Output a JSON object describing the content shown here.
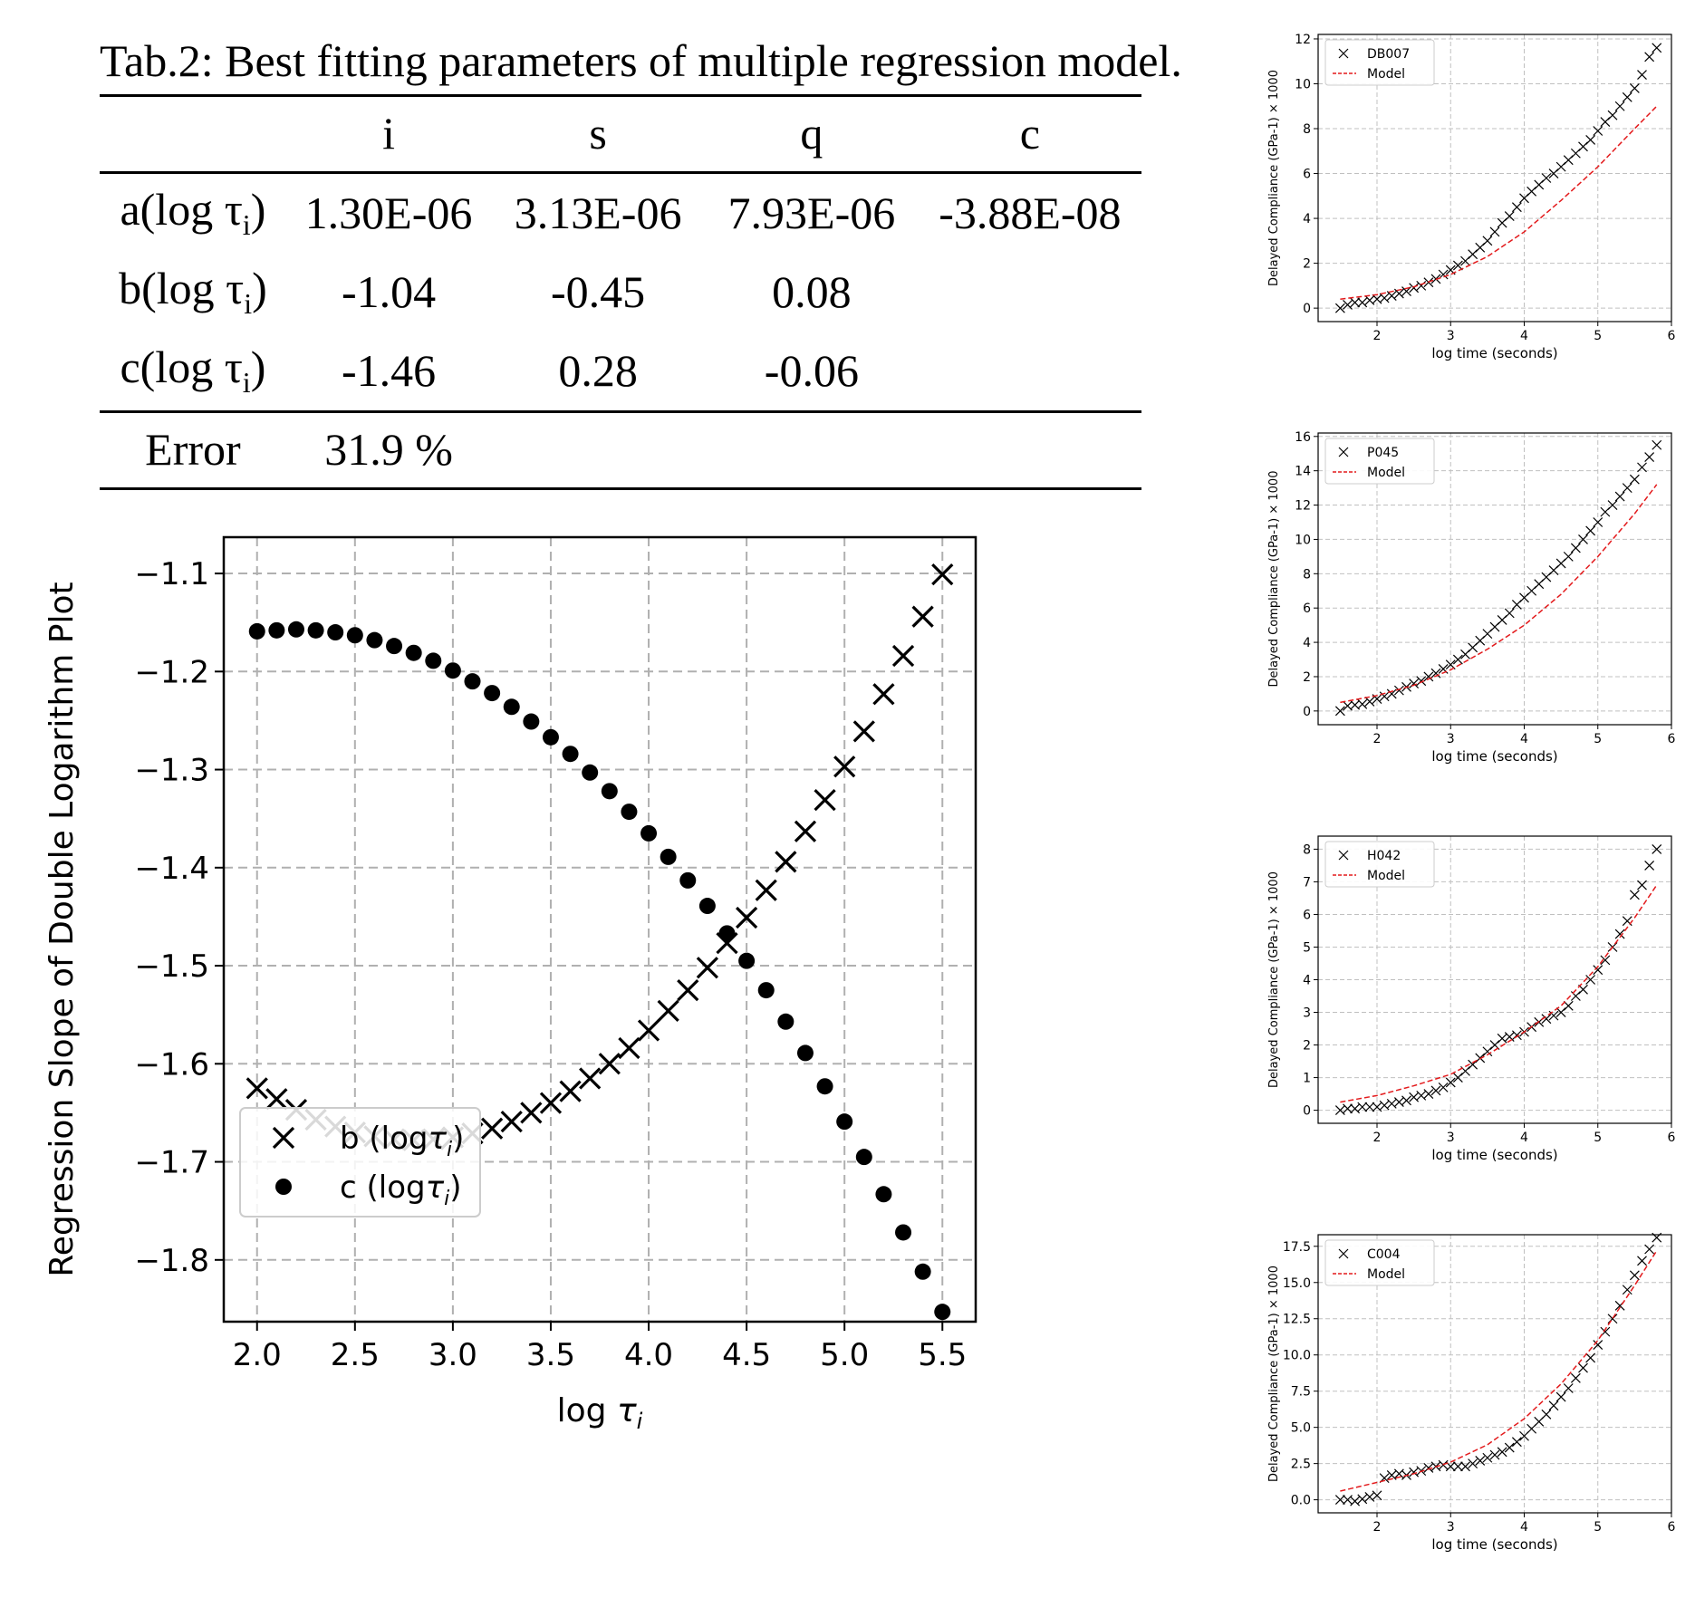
{
  "table": {
    "caption": "Tab.2: Best fitting parameters of multiple regression model.",
    "columns": [
      "",
      "i",
      "s",
      "q",
      "c"
    ],
    "rows": [
      {
        "label_main": "a(log τ",
        "label_sub": "i",
        "label_end": ")",
        "cells": [
          "1.30E-06",
          "3.13E-06",
          "7.93E-06",
          "-3.88E-08"
        ]
      },
      {
        "label_main": "b(log τ",
        "label_sub": "i",
        "label_end": ")",
        "cells": [
          "-1.04",
          "-0.45",
          "0.08",
          ""
        ]
      },
      {
        "label_main": "c(log τ",
        "label_sub": "i",
        "label_end": ")",
        "cells": [
          "-1.46",
          "0.28",
          "-0.06",
          ""
        ]
      }
    ],
    "error": {
      "label": "Error",
      "value": "31.9 %"
    }
  },
  "chart_data": [
    {
      "type": "scatter",
      "title": "",
      "xlabel": "log τi",
      "ylabel": "Regression Slope of Double Logarithm Plot",
      "xlim": [
        1.83,
        5.67
      ],
      "ylim": [
        -1.863,
        -1.063
      ],
      "xticks": [
        "2.0",
        "2.5",
        "3.0",
        "3.5",
        "4.0",
        "4.5",
        "5.0",
        "5.5"
      ],
      "yticks": [
        "−1.1",
        "−1.2",
        "−1.3",
        "−1.4",
        "−1.5",
        "−1.6",
        "−1.7",
        "−1.8"
      ],
      "grid": true,
      "legend_position": "lower-left",
      "x": [
        2.0,
        2.1,
        2.2,
        2.3,
        2.4,
        2.5,
        2.6,
        2.7,
        2.8,
        2.9,
        3.0,
        3.1,
        3.2,
        3.3,
        3.4,
        3.5,
        3.6,
        3.7,
        3.8,
        3.9,
        4.0,
        4.1,
        4.2,
        4.3,
        4.4,
        4.5,
        4.6,
        4.7,
        4.8,
        4.9,
        5.0,
        5.1,
        5.2,
        5.3,
        5.4,
        5.5
      ],
      "series": [
        {
          "name": "b (logτi)",
          "legend_main": "b (log",
          "legend_sym": "τ",
          "legend_sub": "i",
          "legend_end": ")",
          "marker": "x",
          "color": "#000000",
          "values": [
            -1.625,
            -1.636,
            -1.647,
            -1.657,
            -1.664,
            -1.67,
            -1.674,
            -1.677,
            -1.678,
            -1.677,
            -1.675,
            -1.671,
            -1.666,
            -1.659,
            -1.65,
            -1.64,
            -1.628,
            -1.615,
            -1.6,
            -1.584,
            -1.566,
            -1.546,
            -1.525,
            -1.502,
            -1.477,
            -1.451,
            -1.423,
            -1.394,
            -1.363,
            -1.331,
            -1.297,
            -1.261,
            -1.223,
            -1.184,
            -1.144,
            -1.101
          ]
        },
        {
          "name": "c (logτi)",
          "legend_main": "c (log",
          "legend_sym": "τ",
          "legend_sub": "i",
          "legend_end": ")",
          "marker": "o",
          "color": "#000000",
          "values": [
            -1.159,
            -1.158,
            -1.157,
            -1.158,
            -1.16,
            -1.163,
            -1.168,
            -1.174,
            -1.181,
            -1.189,
            -1.199,
            -1.21,
            -1.222,
            -1.236,
            -1.251,
            -1.267,
            -1.284,
            -1.303,
            -1.322,
            -1.343,
            -1.365,
            -1.389,
            -1.413,
            -1.439,
            -1.467,
            -1.495,
            -1.525,
            -1.557,
            -1.589,
            -1.623,
            -1.659,
            -1.695,
            -1.733,
            -1.772,
            -1.812,
            -1.853
          ]
        }
      ]
    },
    {
      "type": "line",
      "xlabel": "log time (seconds)",
      "ylabel": "Delayed Compliance (GPa-1) × 1000",
      "xlim": [
        1.2,
        6.0
      ],
      "ylim": [
        -0.6,
        12.2
      ],
      "xticks": [
        2,
        3,
        4,
        5,
        6
      ],
      "yticks": [
        0,
        2,
        4,
        6,
        8,
        10,
        12
      ],
      "ytick_decimals": 0,
      "grid": true,
      "legend_position": "top-left",
      "series": [
        {
          "name": "DB007",
          "marker": "x",
          "color": "#000000",
          "x": [
            1.5,
            1.6,
            1.7,
            1.8,
            1.9,
            2.0,
            2.1,
            2.2,
            2.3,
            2.4,
            2.5,
            2.6,
            2.7,
            2.8,
            2.9,
            3.0,
            3.1,
            3.2,
            3.3,
            3.4,
            3.5,
            3.6,
            3.7,
            3.8,
            3.9,
            4.0,
            4.1,
            4.2,
            4.3,
            4.4,
            4.5,
            4.6,
            4.7,
            4.8,
            4.9,
            5.0,
            5.1,
            5.2,
            5.3,
            5.4,
            5.5,
            5.6,
            5.7,
            5.8
          ],
          "values": [
            0.0,
            0.15,
            0.25,
            0.25,
            0.35,
            0.4,
            0.45,
            0.55,
            0.65,
            0.75,
            0.9,
            1.0,
            1.15,
            1.3,
            1.5,
            1.7,
            1.9,
            2.1,
            2.4,
            2.7,
            3.0,
            3.4,
            3.8,
            4.1,
            4.5,
            4.9,
            5.2,
            5.5,
            5.8,
            6.0,
            6.3,
            6.6,
            6.9,
            7.2,
            7.5,
            7.9,
            8.3,
            8.6,
            9.0,
            9.4,
            9.8,
            10.4,
            11.2,
            11.6
          ]
        },
        {
          "name": "Model",
          "marker": "line",
          "color": "#e31a1c",
          "x": [
            1.5,
            2.0,
            2.5,
            3.0,
            3.5,
            4.0,
            4.5,
            5.0,
            5.5,
            5.8
          ],
          "values": [
            0.4,
            0.6,
            0.95,
            1.5,
            2.3,
            3.4,
            4.8,
            6.3,
            8.0,
            9.0
          ]
        }
      ]
    },
    {
      "type": "line",
      "xlabel": "log time (seconds)",
      "ylabel": "Delayed Compliance (GPa-1) × 1000",
      "xlim": [
        1.2,
        6.0
      ],
      "ylim": [
        -0.8,
        16.2
      ],
      "xticks": [
        2,
        3,
        4,
        5,
        6
      ],
      "yticks": [
        0,
        2,
        4,
        6,
        8,
        10,
        12,
        14,
        16
      ],
      "ytick_decimals": 0,
      "grid": true,
      "legend_position": "top-left",
      "series": [
        {
          "name": "P045",
          "marker": "x",
          "color": "#000000",
          "x": [
            1.5,
            1.6,
            1.7,
            1.8,
            1.9,
            2.0,
            2.1,
            2.2,
            2.3,
            2.4,
            2.5,
            2.6,
            2.7,
            2.8,
            2.9,
            3.0,
            3.1,
            3.2,
            3.3,
            3.4,
            3.5,
            3.6,
            3.7,
            3.8,
            3.9,
            4.0,
            4.1,
            4.2,
            4.3,
            4.4,
            4.5,
            4.6,
            4.7,
            4.8,
            4.9,
            5.0,
            5.1,
            5.2,
            5.3,
            5.4,
            5.5,
            5.6,
            5.7,
            5.8
          ],
          "values": [
            0.0,
            0.3,
            0.35,
            0.4,
            0.55,
            0.7,
            0.85,
            1.0,
            1.2,
            1.4,
            1.6,
            1.75,
            2.0,
            2.2,
            2.45,
            2.7,
            3.0,
            3.3,
            3.7,
            4.1,
            4.5,
            4.9,
            5.3,
            5.7,
            6.2,
            6.6,
            7.0,
            7.4,
            7.8,
            8.2,
            8.6,
            9.0,
            9.5,
            10.0,
            10.5,
            11.0,
            11.6,
            12.0,
            12.5,
            13.0,
            13.5,
            14.2,
            14.8,
            15.5
          ]
        },
        {
          "name": "Model",
          "marker": "line",
          "color": "#e31a1c",
          "x": [
            1.5,
            2.0,
            2.5,
            3.0,
            3.5,
            4.0,
            4.5,
            5.0,
            5.5,
            5.8
          ],
          "values": [
            0.5,
            0.9,
            1.5,
            2.4,
            3.6,
            5.0,
            6.8,
            9.0,
            11.5,
            13.2
          ]
        }
      ]
    },
    {
      "type": "line",
      "xlabel": "log time (seconds)",
      "ylabel": "Delayed Compliance (GPa-1) × 1000",
      "xlim": [
        1.2,
        6.0
      ],
      "ylim": [
        -0.4,
        8.4
      ],
      "xticks": [
        2,
        3,
        4,
        5,
        6
      ],
      "yticks": [
        0,
        1,
        2,
        3,
        4,
        5,
        6,
        7,
        8
      ],
      "ytick_decimals": 0,
      "grid": true,
      "legend_position": "top-left",
      "series": [
        {
          "name": "H042",
          "marker": "x",
          "color": "#000000",
          "x": [
            1.5,
            1.6,
            1.7,
            1.8,
            1.9,
            2.0,
            2.1,
            2.2,
            2.3,
            2.4,
            2.5,
            2.6,
            2.7,
            2.8,
            2.9,
            3.0,
            3.1,
            3.2,
            3.3,
            3.4,
            3.5,
            3.6,
            3.7,
            3.8,
            3.9,
            4.0,
            4.1,
            4.2,
            4.3,
            4.4,
            4.5,
            4.6,
            4.7,
            4.8,
            4.9,
            5.0,
            5.1,
            5.2,
            5.3,
            5.4,
            5.5,
            5.6,
            5.7,
            5.8
          ],
          "values": [
            0.0,
            0.05,
            0.05,
            0.1,
            0.1,
            0.1,
            0.15,
            0.2,
            0.25,
            0.3,
            0.4,
            0.45,
            0.5,
            0.6,
            0.7,
            0.85,
            1.0,
            1.2,
            1.4,
            1.6,
            1.8,
            2.0,
            2.2,
            2.25,
            2.3,
            2.4,
            2.55,
            2.7,
            2.8,
            2.9,
            3.0,
            3.2,
            3.5,
            3.7,
            4.0,
            4.3,
            4.6,
            5.0,
            5.4,
            5.8,
            6.6,
            6.9,
            7.5,
            8.0
          ]
        },
        {
          "name": "Model",
          "marker": "line",
          "color": "#e31a1c",
          "x": [
            1.5,
            2.0,
            2.5,
            3.0,
            3.5,
            4.0,
            4.5,
            5.0,
            5.5,
            5.8
          ],
          "values": [
            0.25,
            0.45,
            0.75,
            1.1,
            1.7,
            2.4,
            3.2,
            4.4,
            5.9,
            6.9
          ]
        }
      ]
    },
    {
      "type": "line",
      "xlabel": "log time (seconds)",
      "ylabel": "Delayed Compliance (GPa-1) × 1000",
      "xlim": [
        1.2,
        6.0
      ],
      "ylim": [
        -0.9,
        18.3
      ],
      "xticks": [
        2,
        3,
        4,
        5,
        6
      ],
      "yticks": [
        0,
        2.5,
        5,
        7.5,
        10,
        12.5,
        15,
        17.5
      ],
      "ytick_decimals": 1,
      "grid": true,
      "legend_position": "top-left",
      "series": [
        {
          "name": "C004",
          "marker": "x",
          "color": "#000000",
          "x": [
            1.5,
            1.6,
            1.7,
            1.8,
            1.9,
            2.0,
            2.1,
            2.2,
            2.3,
            2.4,
            2.5,
            2.6,
            2.7,
            2.8,
            2.9,
            3.0,
            3.1,
            3.2,
            3.3,
            3.4,
            3.5,
            3.6,
            3.7,
            3.8,
            3.9,
            4.0,
            4.1,
            4.2,
            4.3,
            4.4,
            4.5,
            4.6,
            4.7,
            4.8,
            4.9,
            5.0,
            5.1,
            5.2,
            5.3,
            5.4,
            5.5,
            5.6,
            5.7,
            5.8
          ],
          "values": [
            0.0,
            0.0,
            -0.1,
            0.05,
            0.2,
            0.3,
            1.5,
            1.7,
            1.8,
            1.7,
            1.9,
            2.0,
            2.2,
            2.3,
            2.4,
            2.3,
            2.3,
            2.3,
            2.5,
            2.7,
            2.9,
            3.1,
            3.3,
            3.6,
            4.0,
            4.4,
            4.9,
            5.4,
            5.9,
            6.5,
            7.1,
            7.7,
            8.4,
            9.1,
            9.8,
            10.7,
            11.6,
            12.5,
            13.4,
            14.5,
            15.5,
            16.5,
            17.3,
            18.1
          ]
        },
        {
          "name": "Model",
          "marker": "line",
          "color": "#e31a1c",
          "x": [
            1.5,
            2.0,
            2.5,
            3.0,
            3.5,
            4.0,
            4.5,
            5.0,
            5.5,
            5.8
          ],
          "values": [
            0.6,
            1.2,
            1.8,
            2.6,
            3.8,
            5.6,
            8.0,
            11.0,
            14.8,
            17.2
          ]
        }
      ]
    }
  ]
}
